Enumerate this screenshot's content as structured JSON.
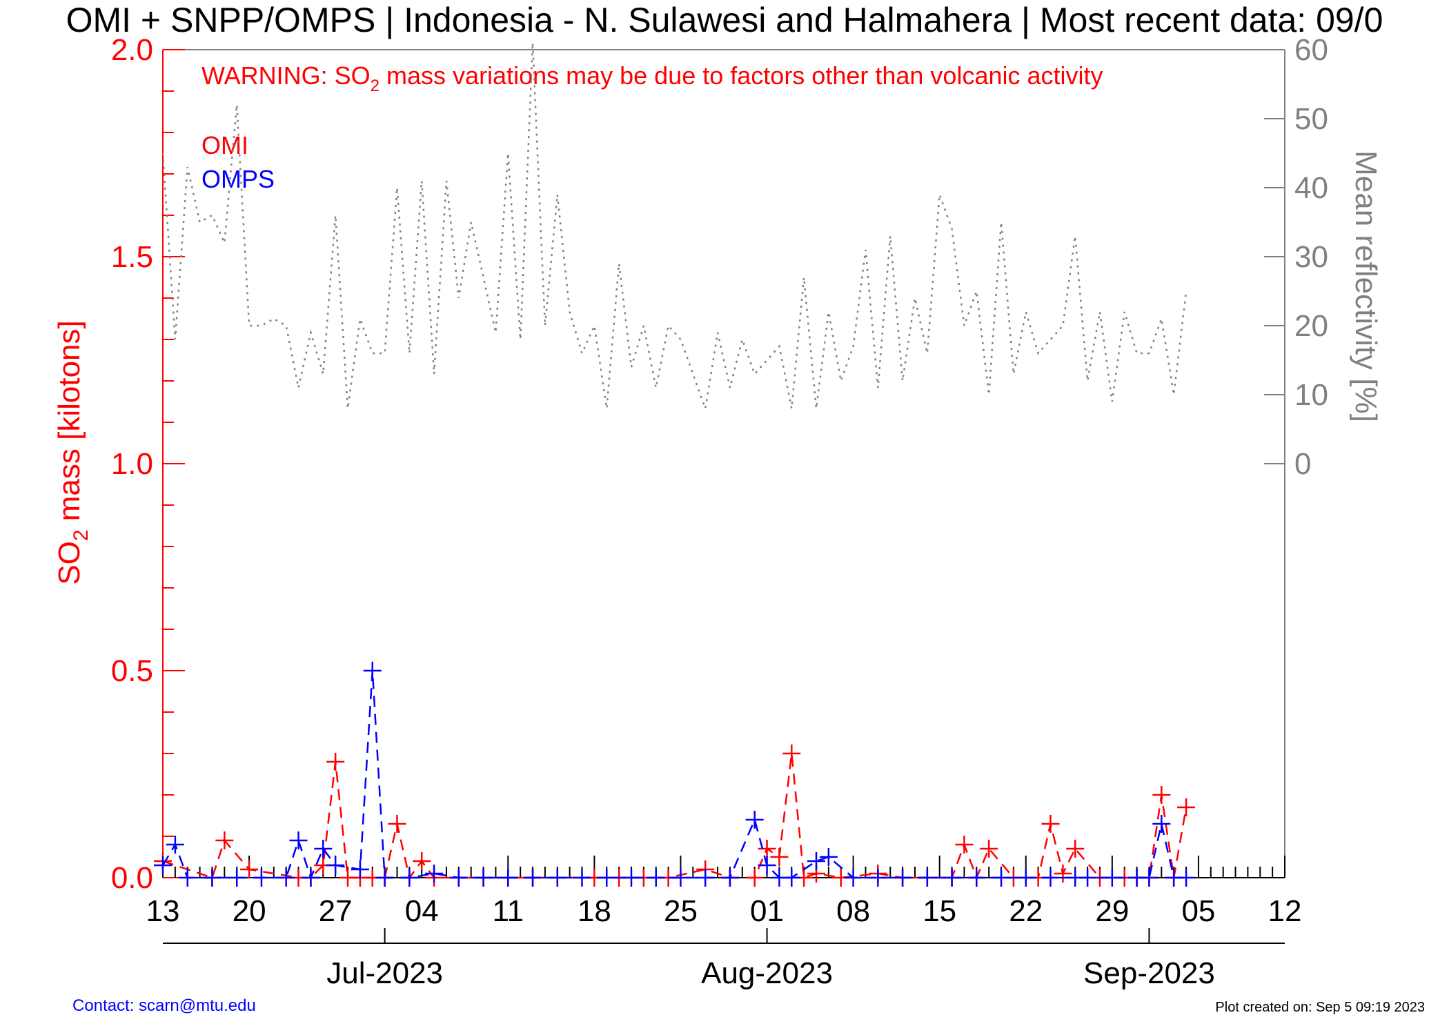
{
  "chart_data": {
    "type": "line",
    "title": "OMI + SNPP/OMPS | Indonesia - N. Sulawesi and Halmahera | Most recent data: 09/0",
    "warning": {
      "prefix": "WARNING: SO",
      "subscript": "2",
      "suffix": " mass variations may be due to factors other than volcanic activity"
    },
    "ylabel": {
      "prefix": "SO",
      "subscript": "2",
      "suffix": " mass [kilotons]"
    },
    "y2label": "Mean reflectivity [%]",
    "ylim": [
      0,
      2.0
    ],
    "y2lim": [
      0,
      60
    ],
    "y_ticks": [
      "0.0",
      "0.5",
      "1.0",
      "1.5",
      "2.0"
    ],
    "y2_ticks": [
      "0",
      "10",
      "20",
      "30",
      "40",
      "50",
      "60"
    ],
    "xlim": [
      "2023-06-13",
      "2023-09-12"
    ],
    "x_ticks": [
      {
        "date": "2023-06-13",
        "label": "13"
      },
      {
        "date": "2023-06-20",
        "label": "20"
      },
      {
        "date": "2023-06-27",
        "label": "27"
      },
      {
        "date": "2023-07-04",
        "label": "04"
      },
      {
        "date": "2023-07-11",
        "label": "11"
      },
      {
        "date": "2023-07-18",
        "label": "18"
      },
      {
        "date": "2023-07-25",
        "label": "25"
      },
      {
        "date": "2023-08-01",
        "label": "01"
      },
      {
        "date": "2023-08-08",
        "label": "08"
      },
      {
        "date": "2023-08-15",
        "label": "15"
      },
      {
        "date": "2023-08-22",
        "label": "22"
      },
      {
        "date": "2023-08-29",
        "label": "29"
      },
      {
        "date": "2023-09-05",
        "label": "05"
      },
      {
        "date": "2023-09-12",
        "label": "12"
      }
    ],
    "months": [
      {
        "date": "2023-07-01",
        "label": "Jul-2023"
      },
      {
        "date": "2023-08-01",
        "label": "Aug-2023"
      },
      {
        "date": "2023-09-01",
        "label": "Sep-2023"
      }
    ],
    "legend": [
      {
        "name": "OMI",
        "color": "#ff0000"
      },
      {
        "name": "OMPS",
        "color": "#0000ff"
      }
    ],
    "series": [
      {
        "name": "OMI",
        "axis": "left",
        "color": "#ff0000",
        "x": [
          "2023-06-13",
          "2023-06-17",
          "2023-06-18",
          "2023-06-20",
          "2023-06-24",
          "2023-06-25",
          "2023-06-26",
          "2023-06-27",
          "2023-06-28",
          "2023-06-29",
          "2023-06-30",
          "2023-07-01",
          "2023-07-02",
          "2023-07-03",
          "2023-07-04",
          "2023-07-05",
          "2023-07-07",
          "2023-07-09",
          "2023-07-11",
          "2023-07-13",
          "2023-07-15",
          "2023-07-18",
          "2023-07-20",
          "2023-07-22",
          "2023-07-24",
          "2023-07-27",
          "2023-07-29",
          "2023-07-31",
          "2023-08-01",
          "2023-08-02",
          "2023-08-03",
          "2023-08-04",
          "2023-08-05",
          "2023-08-07",
          "2023-08-10",
          "2023-08-12",
          "2023-08-14",
          "2023-08-16",
          "2023-08-17",
          "2023-08-18",
          "2023-08-19",
          "2023-08-21",
          "2023-08-23",
          "2023-08-24",
          "2023-08-25",
          "2023-08-26",
          "2023-08-28",
          "2023-08-30",
          "2023-08-31",
          "2023-09-01",
          "2023-09-02",
          "2023-09-03",
          "2023-09-04"
        ],
        "values": [
          0.04,
          0.0,
          0.09,
          0.02,
          0.0,
          0.0,
          0.03,
          0.28,
          0.0,
          0.0,
          0.0,
          0.0,
          0.13,
          0.0,
          0.04,
          0.0,
          0.0,
          0.0,
          0.0,
          0.0,
          0.0,
          0.0,
          0.0,
          0.0,
          0.0,
          0.02,
          0.0,
          0.0,
          0.07,
          0.05,
          0.3,
          0.0,
          0.01,
          0.0,
          0.01,
          0.0,
          0.0,
          0.0,
          0.08,
          0.0,
          0.07,
          0.0,
          0.0,
          0.13,
          0.01,
          0.07,
          0.0,
          0.0,
          0.0,
          0.0,
          0.2,
          0.0,
          0.17
        ]
      },
      {
        "name": "OMPS",
        "axis": "left",
        "color": "#0000ff",
        "x": [
          "2023-06-13",
          "2023-06-14",
          "2023-06-15",
          "2023-06-17",
          "2023-06-19",
          "2023-06-21",
          "2023-06-23",
          "2023-06-24",
          "2023-06-25",
          "2023-06-26",
          "2023-06-27",
          "2023-06-29",
          "2023-06-30",
          "2023-07-01",
          "2023-07-03",
          "2023-07-05",
          "2023-07-07",
          "2023-07-09",
          "2023-07-11",
          "2023-07-13",
          "2023-07-15",
          "2023-07-17",
          "2023-07-19",
          "2023-07-21",
          "2023-07-23",
          "2023-07-25",
          "2023-07-27",
          "2023-07-29",
          "2023-07-31",
          "2023-08-01",
          "2023-08-02",
          "2023-08-03",
          "2023-08-05",
          "2023-08-06",
          "2023-08-08",
          "2023-08-10",
          "2023-08-12",
          "2023-08-14",
          "2023-08-16",
          "2023-08-18",
          "2023-08-20",
          "2023-08-22",
          "2023-08-24",
          "2023-08-26",
          "2023-08-27",
          "2023-08-29",
          "2023-08-31",
          "2023-09-01",
          "2023-09-02",
          "2023-09-03",
          "2023-09-04"
        ],
        "values": [
          0.03,
          0.08,
          0.0,
          0.0,
          0.0,
          0.0,
          0.0,
          0.09,
          0.0,
          0.07,
          0.03,
          0.02,
          0.5,
          0.0,
          0.0,
          0.01,
          0.0,
          0.0,
          0.0,
          0.0,
          0.0,
          0.0,
          0.0,
          0.0,
          0.0,
          0.0,
          0.0,
          0.0,
          0.14,
          0.03,
          0.0,
          0.0,
          0.04,
          0.05,
          0.0,
          0.0,
          0.0,
          0.0,
          0.0,
          0.0,
          0.0,
          0.0,
          0.0,
          0.0,
          0.0,
          0.0,
          0.0,
          0.0,
          0.13,
          0.0,
          0.0
        ]
      },
      {
        "name": "Mean reflectivity",
        "axis": "right",
        "color": "#808080",
        "x": [
          "2023-06-13",
          "2023-06-14",
          "2023-06-15",
          "2023-06-16",
          "2023-06-17",
          "2023-06-18",
          "2023-06-19",
          "2023-06-20",
          "2023-06-21",
          "2023-06-22",
          "2023-06-23",
          "2023-06-24",
          "2023-06-25",
          "2023-06-26",
          "2023-06-27",
          "2023-06-28",
          "2023-06-29",
          "2023-06-30",
          "2023-07-01",
          "2023-07-02",
          "2023-07-03",
          "2023-07-04",
          "2023-07-05",
          "2023-07-06",
          "2023-07-07",
          "2023-07-08",
          "2023-07-09",
          "2023-07-10",
          "2023-07-11",
          "2023-07-12",
          "2023-07-13",
          "2023-07-14",
          "2023-07-15",
          "2023-07-16",
          "2023-07-17",
          "2023-07-18",
          "2023-07-19",
          "2023-07-20",
          "2023-07-21",
          "2023-07-22",
          "2023-07-23",
          "2023-07-24",
          "2023-07-25",
          "2023-07-26",
          "2023-07-27",
          "2023-07-28",
          "2023-07-29",
          "2023-07-30",
          "2023-07-31",
          "2023-08-01",
          "2023-08-02",
          "2023-08-03",
          "2023-08-04",
          "2023-08-05",
          "2023-08-06",
          "2023-08-07",
          "2023-08-08",
          "2023-08-09",
          "2023-08-10",
          "2023-08-11",
          "2023-08-12",
          "2023-08-13",
          "2023-08-14",
          "2023-08-15",
          "2023-08-16",
          "2023-08-17",
          "2023-08-18",
          "2023-08-19",
          "2023-08-20",
          "2023-08-21",
          "2023-08-22",
          "2023-08-23",
          "2023-08-24",
          "2023-08-25",
          "2023-08-26",
          "2023-08-27",
          "2023-08-28",
          "2023-08-29",
          "2023-08-30",
          "2023-08-31",
          "2023-09-01",
          "2023-09-02",
          "2023-09-03",
          "2023-09-04"
        ],
        "values": [
          45,
          18,
          43,
          35,
          36,
          32,
          52,
          20,
          20,
          21,
          20,
          11,
          19,
          13,
          36,
          8,
          21,
          16,
          16,
          40,
          16,
          41,
          13,
          41,
          24,
          35,
          27,
          19,
          45,
          18,
          61,
          20,
          39,
          22,
          16,
          20,
          8,
          29,
          14,
          20,
          11,
          20,
          18,
          13,
          8,
          19,
          11,
          18,
          13,
          15,
          17,
          8,
          27,
          8,
          22,
          12,
          17,
          31,
          11,
          33,
          12,
          24,
          16,
          39,
          34,
          20,
          25,
          10,
          35,
          13,
          22,
          16,
          18,
          20,
          33,
          12,
          22,
          9,
          22,
          16,
          16,
          21,
          10,
          25
        ]
      }
    ]
  },
  "footer": {
    "contact": "Contact: scarn@mtu.edu",
    "created": "Plot created on: Sep  5 09:19 2023"
  }
}
